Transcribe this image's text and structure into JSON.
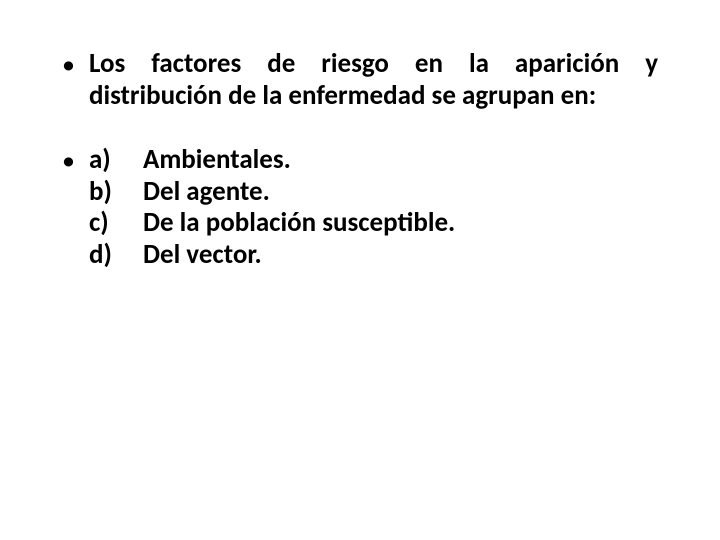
{
  "slide": {
    "bullet_glyph": "•",
    "lead_text": "Los factores de riesgo en la aparición y distribución de la enfermedad se agrupan en:",
    "options": [
      {
        "letter": "a)",
        "text": "Ambientales."
      },
      {
        "letter": "b)",
        "text": "Del agente."
      },
      {
        "letter": "c)",
        "text": " De la población susceptible."
      },
      {
        "letter": "d)",
        "text": "Del vector."
      }
    ],
    "colors": {
      "text": "#000000",
      "background": "#ffffff"
    },
    "typography": {
      "font_family": "Calibri",
      "font_size_pt": 20,
      "font_weight": "bold",
      "line_height": 1.18
    }
  }
}
